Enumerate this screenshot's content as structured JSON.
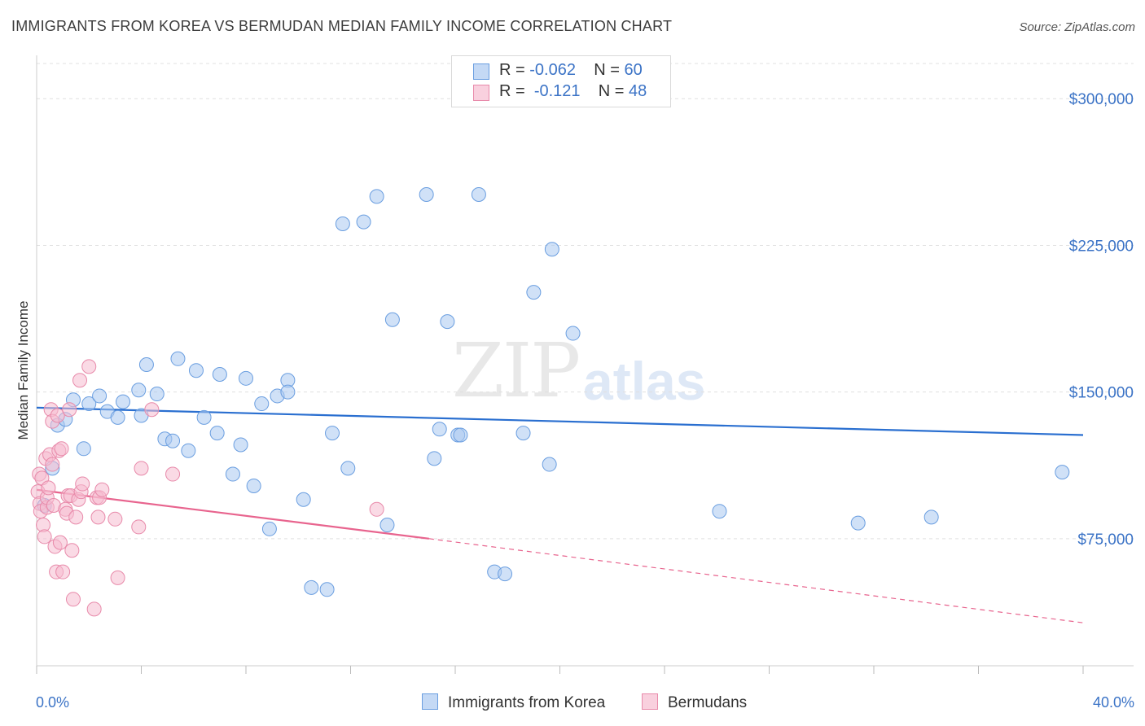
{
  "header": {
    "title": "IMMIGRANTS FROM KOREA VS BERMUDAN MEDIAN FAMILY INCOME CORRELATION CHART",
    "source": "Source: ZipAtlas.com"
  },
  "watermark": {
    "zip": "ZIP",
    "atlas": "atlas"
  },
  "legend": {
    "korea": {
      "r_label": "R =",
      "r_value": "-0.062",
      "n_label": "N =",
      "n_value": "60"
    },
    "bermuda": {
      "r_label": "R =",
      "r_value": "-0.121",
      "n_label": "N =",
      "n_value": "48"
    }
  },
  "bottom_legend": {
    "korea": "Immigrants from Korea",
    "bermuda": "Bermudans"
  },
  "colors": {
    "korea_fill": "#aac8f0",
    "korea_stroke": "#6a9ee0",
    "korea_line": "#2a6fd0",
    "bermuda_fill": "#f6bcd0",
    "bermuda_stroke": "#e88aaa",
    "bermuda_line": "#e8648e",
    "grid": "#e0e0e0",
    "tick_text": "#3b73c6"
  },
  "chart_data": {
    "type": "scatter",
    "title": "IMMIGRANTS FROM KOREA VS BERMUDAN MEDIAN FAMILY INCOME CORRELATION CHART",
    "xlabel": "",
    "ylabel": "Median Family Income",
    "xlim": [
      0,
      40
    ],
    "ylim": [
      10000,
      318000
    ],
    "x_tick_labels": [
      "0.0%",
      "40.0%"
    ],
    "y_ticks": [
      75000,
      150000,
      225000,
      300000
    ],
    "y_tick_labels": [
      "$75,000",
      "$150,000",
      "$225,000",
      "$300,000"
    ],
    "grid": true,
    "legend_position": "top-center",
    "series": [
      {
        "name": "Immigrants from Korea",
        "r": -0.062,
        "n": 60,
        "trend": {
          "x": [
            0,
            40
          ],
          "y": [
            142000,
            128000
          ]
        },
        "points": [
          [
            0.3,
            92000
          ],
          [
            0.6,
            111000
          ],
          [
            0.8,
            133000
          ],
          [
            1.1,
            136000
          ],
          [
            1.4,
            146000
          ],
          [
            1.8,
            121000
          ],
          [
            2.0,
            144000
          ],
          [
            2.4,
            148000
          ],
          [
            2.7,
            140000
          ],
          [
            3.1,
            137000
          ],
          [
            3.3,
            145000
          ],
          [
            3.9,
            151000
          ],
          [
            4.0,
            138000
          ],
          [
            4.2,
            164000
          ],
          [
            4.6,
            149000
          ],
          [
            4.9,
            126000
          ],
          [
            5.2,
            125000
          ],
          [
            5.4,
            167000
          ],
          [
            5.8,
            120000
          ],
          [
            6.1,
            161000
          ],
          [
            6.4,
            137000
          ],
          [
            6.9,
            129000
          ],
          [
            7.0,
            159000
          ],
          [
            7.5,
            108000
          ],
          [
            7.8,
            123000
          ],
          [
            8.0,
            157000
          ],
          [
            8.3,
            102000
          ],
          [
            8.6,
            144000
          ],
          [
            8.9,
            80000
          ],
          [
            9.2,
            148000
          ],
          [
            9.6,
            156000
          ],
          [
            9.6,
            150000
          ],
          [
            10.2,
            95000
          ],
          [
            10.5,
            50000
          ],
          [
            11.1,
            49000
          ],
          [
            11.3,
            129000
          ],
          [
            11.7,
            236000
          ],
          [
            11.9,
            111000
          ],
          [
            12.5,
            237000
          ],
          [
            13.0,
            250000
          ],
          [
            13.4,
            82000
          ],
          [
            13.6,
            187000
          ],
          [
            14.9,
            251000
          ],
          [
            15.2,
            116000
          ],
          [
            15.4,
            131000
          ],
          [
            15.7,
            186000
          ],
          [
            16.1,
            128000
          ],
          [
            16.2,
            128000
          ],
          [
            16.9,
            251000
          ],
          [
            17.5,
            58000
          ],
          [
            17.9,
            57000
          ],
          [
            18.6,
            129000
          ],
          [
            19.0,
            201000
          ],
          [
            19.6,
            113000
          ],
          [
            19.7,
            223000
          ],
          [
            20.5,
            180000
          ],
          [
            26.1,
            89000
          ],
          [
            31.4,
            83000
          ],
          [
            34.2,
            86000
          ],
          [
            39.2,
            109000
          ]
        ]
      },
      {
        "name": "Bermudans",
        "r": -0.121,
        "n": 48,
        "trend": {
          "x": [
            0,
            15
          ],
          "y": [
            100000,
            75000
          ]
        },
        "trend_dashed": {
          "x": [
            15,
            40
          ],
          "y": [
            75000,
            32000
          ]
        },
        "points": [
          [
            0.05,
            99000
          ],
          [
            0.1,
            108000
          ],
          [
            0.12,
            93000
          ],
          [
            0.15,
            89000
          ],
          [
            0.2,
            106000
          ],
          [
            0.25,
            82000
          ],
          [
            0.3,
            76000
          ],
          [
            0.35,
            116000
          ],
          [
            0.4,
            91000
          ],
          [
            0.4,
            96000
          ],
          [
            0.45,
            101000
          ],
          [
            0.5,
            118000
          ],
          [
            0.55,
            141000
          ],
          [
            0.6,
            135000
          ],
          [
            0.6,
            113000
          ],
          [
            0.65,
            92000
          ],
          [
            0.7,
            71000
          ],
          [
            0.75,
            58000
          ],
          [
            0.8,
            138000
          ],
          [
            0.85,
            120000
          ],
          [
            0.9,
            73000
          ],
          [
            0.95,
            121000
          ],
          [
            1.0,
            58000
          ],
          [
            1.1,
            90000
          ],
          [
            1.15,
            88000
          ],
          [
            1.2,
            97000
          ],
          [
            1.25,
            141000
          ],
          [
            1.3,
            97000
          ],
          [
            1.35,
            69000
          ],
          [
            1.4,
            44000
          ],
          [
            1.5,
            86000
          ],
          [
            1.6,
            95000
          ],
          [
            1.65,
            156000
          ],
          [
            1.7,
            99000
          ],
          [
            1.75,
            103000
          ],
          [
            2.0,
            163000
          ],
          [
            2.2,
            39000
          ],
          [
            2.3,
            96000
          ],
          [
            2.35,
            86000
          ],
          [
            2.4,
            96000
          ],
          [
            2.5,
            100000
          ],
          [
            3.0,
            85000
          ],
          [
            3.1,
            55000
          ],
          [
            3.9,
            81000
          ],
          [
            4.0,
            111000
          ],
          [
            4.4,
            141000
          ],
          [
            5.2,
            108000
          ],
          [
            13.0,
            90000
          ]
        ]
      }
    ]
  }
}
